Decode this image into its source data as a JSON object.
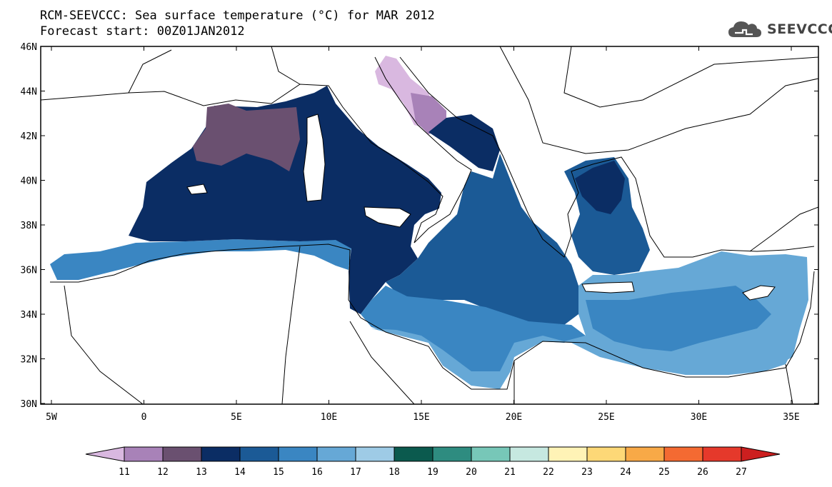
{
  "title": {
    "line1": "RCM-SEEVCCC: Sea surface temperature (°C) for MAR 2012",
    "line2": "Forecast start: 00Z01JAN2012"
  },
  "logo": {
    "text": "SEEVCCC",
    "icon": "cloud-icon"
  },
  "map": {
    "lat_labels": [
      "46N",
      "44N",
      "42N",
      "40N",
      "38N",
      "36N",
      "34N",
      "32N",
      "30N"
    ],
    "lon_labels": [
      "5W",
      "0",
      "5E",
      "10E",
      "15E",
      "20E",
      "25E",
      "30E",
      "35E"
    ]
  },
  "colorbar": {
    "labels": [
      "11",
      "12",
      "13",
      "14",
      "15",
      "16",
      "17",
      "18",
      "19",
      "20",
      "21",
      "22",
      "23",
      "24",
      "25",
      "26",
      "27"
    ],
    "colors": [
      "#d9b8e0",
      "#a882b8",
      "#6a5070",
      "#0b2d64",
      "#1b5a96",
      "#3a86c2",
      "#66a8d6",
      "#9ecbe6",
      "#0b5a4e",
      "#2e8c80",
      "#77c7b8",
      "#c6e8e0",
      "#fff3b6",
      "#fdd877",
      "#f8a947",
      "#f46a32",
      "#e5392b",
      "#cc1f1f"
    ]
  }
}
